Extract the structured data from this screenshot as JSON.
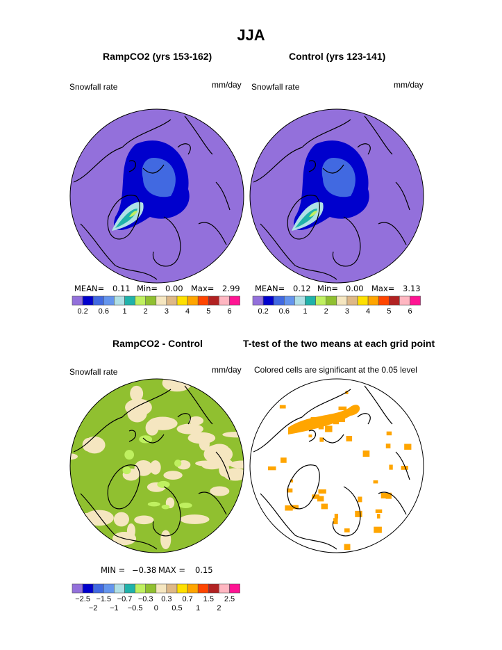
{
  "title": "JJA",
  "panels": [
    {
      "title": "RampCO2 (yrs 153-162)",
      "left_label": "Snowfall rate",
      "right_label": "mm/day",
      "stats": {
        "mean_label": "MEAN=",
        "mean": "0.11",
        "min_label": "Min=",
        "min": "0.00",
        "max_label": "Max=",
        "max": "2.99"
      }
    },
    {
      "title": "Control (yrs 123-141)",
      "left_label": "Snowfall rate",
      "right_label": "mm/day",
      "stats": {
        "mean_label": "MEAN=",
        "mean": "0.12",
        "min_label": "Min=",
        "min": "0.00",
        "max_label": "Max=",
        "max": "3.13"
      }
    },
    {
      "title": "RampCO2 - Control",
      "left_label": "Snowfall rate",
      "right_label": "mm/day",
      "stats": {
        "min_label": "MIN =",
        "min": "−0.38",
        "max_label": "MAX =",
        "max": "0.15"
      }
    },
    {
      "title": "T-test of the two means at each grid point",
      "left_label": "Colored cells are significant at the 0.05 level"
    }
  ],
  "chart_data": [
    {
      "type": "heatmap",
      "title": "RampCO2 (yrs 153-162)",
      "variable": "Snowfall rate",
      "units": "mm/day",
      "projection": "north polar stereographic",
      "mean": 0.11,
      "min": 0.0,
      "max": 2.99,
      "levels": [
        "0.2",
        "0.6",
        "1",
        "2",
        "3",
        "4",
        "5",
        "6"
      ],
      "colors": [
        "#9370db",
        "#0000cd",
        "#4169e1",
        "#6495ed",
        "#b0e0e6",
        "#20b2aa",
        "#bff060",
        "#90c030",
        "#f5e6c0",
        "#deb887",
        "#ffe000",
        "#ffa500",
        "#ff4500",
        "#b22222",
        "#ffb6c1",
        "#ff1493"
      ]
    },
    {
      "type": "heatmap",
      "title": "Control (yrs 123-141)",
      "variable": "Snowfall rate",
      "units": "mm/day",
      "mean": 0.12,
      "min": 0.0,
      "max": 3.13,
      "levels": [
        "0.2",
        "0.6",
        "1",
        "2",
        "3",
        "4",
        "5",
        "6"
      ]
    },
    {
      "type": "heatmap",
      "title": "RampCO2 - Control",
      "variable": "Snowfall rate",
      "units": "mm/day",
      "min": -0.38,
      "max": 0.15,
      "levels": [
        "−2.5",
        "−2",
        "−1.5",
        "−1",
        "−0.7",
        "−0.5",
        "−0.3",
        "0",
        "0.3",
        "0.5",
        "0.7",
        "1",
        "1.5",
        "2",
        "2.5"
      ]
    },
    {
      "type": "heatmap",
      "title": "T-test of the two means at each grid point",
      "note": "Colored cells are significant at the 0.05 level",
      "color": "#ffa500"
    }
  ]
}
